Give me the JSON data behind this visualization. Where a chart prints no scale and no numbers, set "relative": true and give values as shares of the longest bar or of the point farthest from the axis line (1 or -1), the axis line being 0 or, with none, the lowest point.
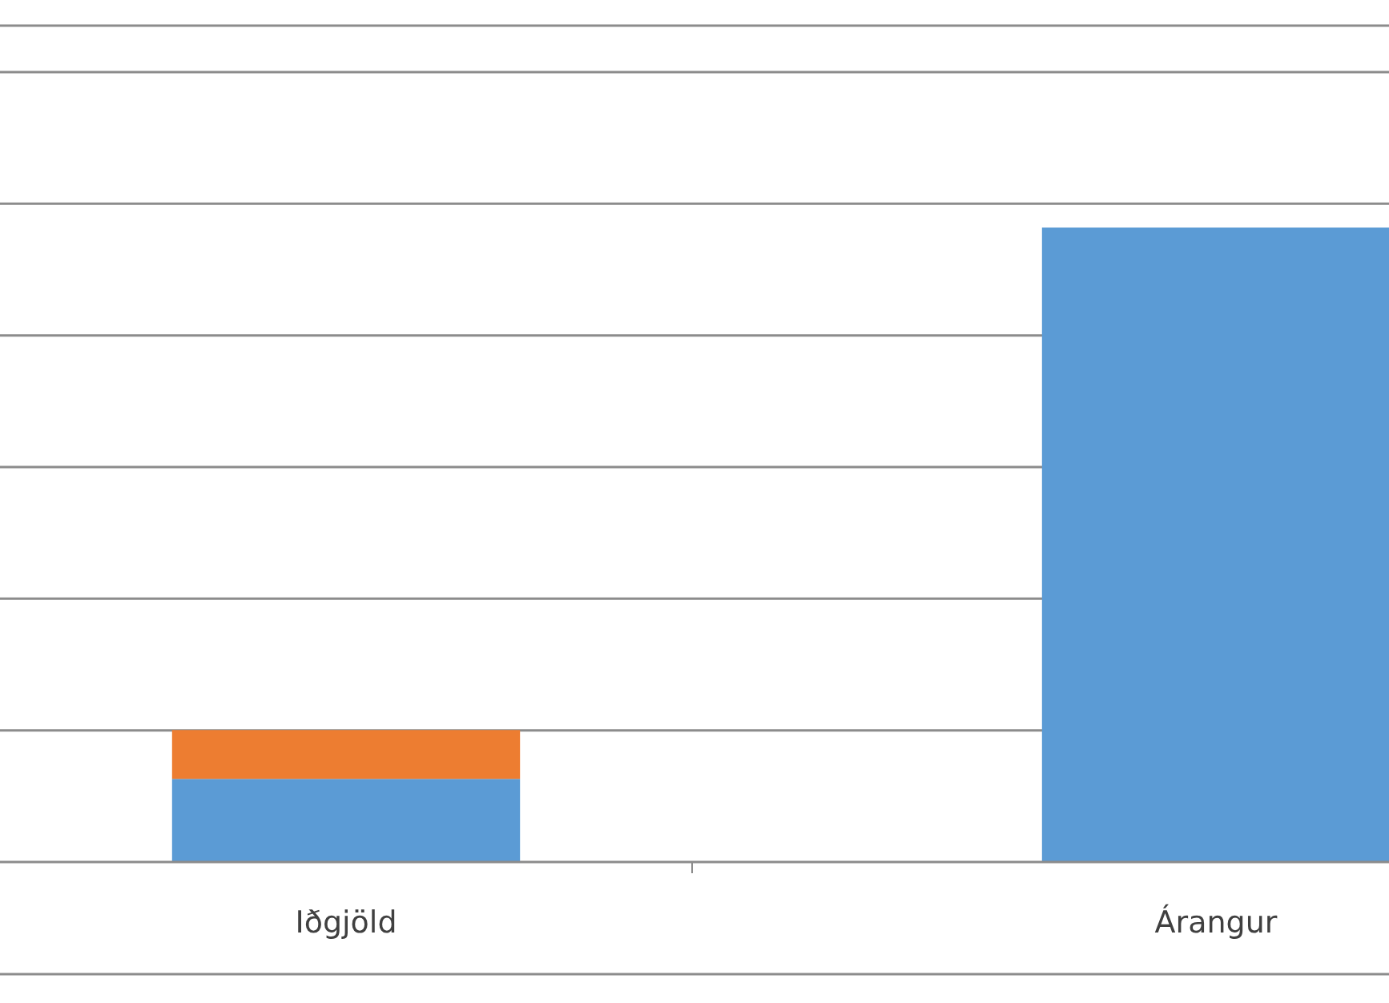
{
  "chart_data": {
    "type": "bar",
    "relative": true,
    "stacked": true,
    "grid": "y",
    "categories": [
      "Iðgjöld",
      "Árangur"
    ],
    "series": [
      {
        "color": "#5b9bd5",
        "values": [
          0.131,
          1
        ]
      },
      {
        "color": "#ed7d31",
        "values": [
          0.077,
          0
        ]
      }
    ]
  }
}
